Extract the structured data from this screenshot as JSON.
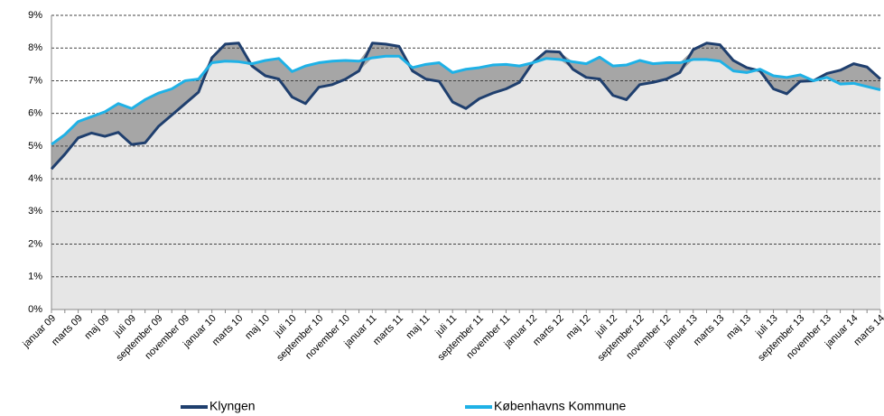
{
  "chart_data": {
    "type": "line",
    "categories": [
      "januar 09",
      null,
      "marts 09",
      null,
      "maj 09",
      null,
      "juli 09",
      null,
      "september 09",
      null,
      "november 09",
      null,
      "januar 10",
      null,
      "marts 10",
      null,
      "maj 10",
      null,
      "juli 10",
      null,
      "september 10",
      null,
      "november 10",
      null,
      "januar 11",
      null,
      "marts 11",
      null,
      "maj 11",
      null,
      "juli 11",
      null,
      "september 11",
      null,
      "november 11",
      null,
      "januar 12",
      null,
      "marts 12",
      null,
      "maj 12",
      null,
      "juli 12",
      null,
      "september 12",
      null,
      "november 12",
      null,
      "januar 13",
      null,
      "marts 13",
      null,
      "maj 13",
      null,
      "juli 13",
      null,
      "september 13",
      null,
      "november 13",
      null,
      "januar 14",
      null,
      "marts 14"
    ],
    "series": [
      {
        "name": "Klyngen",
        "color": "#1f3f6e",
        "values": [
          4.3,
          4.75,
          5.25,
          5.4,
          5.3,
          5.42,
          5.05,
          5.1,
          5.6,
          5.95,
          6.3,
          6.65,
          7.7,
          8.12,
          8.15,
          7.45,
          7.15,
          7.05,
          6.5,
          6.3,
          6.8,
          6.88,
          7.05,
          7.3,
          8.15,
          8.12,
          8.05,
          7.3,
          7.05,
          6.98,
          6.35,
          6.15,
          6.45,
          6.62,
          6.75,
          6.95,
          7.55,
          7.9,
          7.88,
          7.35,
          7.1,
          7.05,
          6.55,
          6.42,
          6.88,
          6.95,
          7.05,
          7.25,
          7.95,
          8.15,
          8.1,
          7.62,
          7.4,
          7.3,
          6.75,
          6.6,
          6.98,
          7.0,
          7.22,
          7.32,
          7.52,
          7.42,
          7.05
        ]
      },
      {
        "name": "Københavns Kommune",
        "color": "#1fb1e6",
        "values": [
          5.05,
          5.35,
          5.75,
          5.9,
          6.05,
          6.3,
          6.15,
          6.42,
          6.62,
          6.75,
          7.0,
          7.05,
          7.55,
          7.6,
          7.58,
          7.52,
          7.62,
          7.68,
          7.28,
          7.45,
          7.55,
          7.6,
          7.62,
          7.6,
          7.7,
          7.75,
          7.75,
          7.4,
          7.5,
          7.55,
          7.25,
          7.35,
          7.4,
          7.48,
          7.5,
          7.45,
          7.55,
          7.68,
          7.65,
          7.58,
          7.52,
          7.72,
          7.45,
          7.48,
          7.62,
          7.52,
          7.55,
          7.55,
          7.65,
          7.65,
          7.6,
          7.3,
          7.25,
          7.35,
          7.15,
          7.1,
          7.18,
          7.0,
          7.1,
          6.9,
          6.92,
          6.82,
          6.72
        ]
      }
    ],
    "ylim": [
      0,
      9
    ],
    "yticks": [
      {
        "value": 0,
        "label": "0%"
      },
      {
        "value": 1,
        "label": "1%"
      },
      {
        "value": 2,
        "label": "2%"
      },
      {
        "value": 3,
        "label": "3%"
      },
      {
        "value": 4,
        "label": "4%"
      },
      {
        "value": 5,
        "label": "5%"
      },
      {
        "value": 6,
        "label": "6%"
      },
      {
        "value": 7,
        "label": "7%"
      },
      {
        "value": 8,
        "label": "8%"
      },
      {
        "value": 9,
        "label": "9%"
      }
    ],
    "grid": true,
    "legend": "bottom"
  }
}
